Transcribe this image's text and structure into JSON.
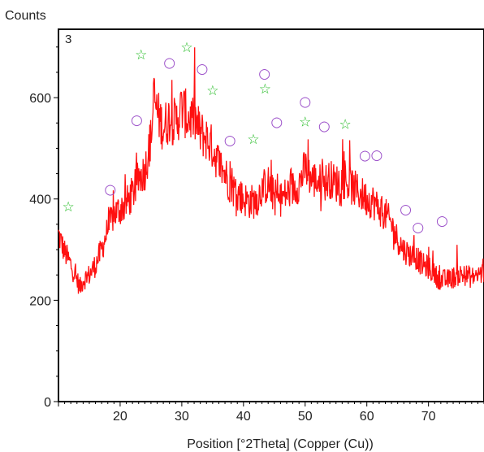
{
  "chart_data": {
    "type": "line",
    "title": "",
    "panel_label": "3",
    "ylabel": "Counts",
    "xlabel": "Position [°2Theta] (Copper (Cu))",
    "xlim": [
      10,
      79
    ],
    "ylim": [
      0,
      735
    ],
    "xticks": [
      20,
      30,
      40,
      50,
      60,
      70
    ],
    "yticks": [
      0,
      200,
      400,
      600
    ],
    "grid": false,
    "colors": {
      "trace": "#ff1010",
      "trace_dark": "#b00000",
      "star": "#22bb22",
      "circle": "#9b4fc9",
      "frame": "#000000"
    },
    "series": [
      {
        "x": [
          10,
          11,
          12,
          13,
          13.5,
          14,
          15,
          16,
          17,
          18,
          19,
          20,
          21,
          22,
          23,
          24,
          25,
          25.5,
          26,
          27,
          28,
          29,
          30,
          31,
          32,
          33,
          34,
          35,
          36,
          37,
          38,
          39,
          40,
          41,
          42,
          43,
          44,
          45,
          46,
          47,
          48,
          49,
          50,
          51,
          52,
          53,
          54,
          55,
          56,
          57,
          58,
          59,
          60,
          61,
          62,
          63,
          64,
          65,
          66,
          67,
          68,
          69,
          70,
          71,
          72,
          73,
          74,
          75,
          76,
          77,
          78,
          79
        ],
        "y": [
          330,
          295,
          270,
          240,
          225,
          240,
          250,
          270,
          300,
          340,
          370,
          380,
          390,
          410,
          440,
          455,
          520,
          600,
          570,
          540,
          560,
          550,
          580,
          560,
          560,
          530,
          520,
          500,
          470,
          450,
          425,
          410,
          400,
          395,
          395,
          420,
          430,
          405,
          400,
          410,
          420,
          430,
          460,
          440,
          435,
          430,
          440,
          430,
          440,
          430,
          420,
          410,
          400,
          395,
          380,
          370,
          350,
          320,
          300,
          290,
          285,
          270,
          265,
          250,
          240,
          240,
          245,
          250,
          250,
          245,
          250,
          255
        ]
      }
    ],
    "markers": {
      "star_label": "☆",
      "circle_label": "○",
      "stars": [
        {
          "x": 11.6,
          "y": 385
        },
        {
          "x": 23.4,
          "y": 685
        },
        {
          "x": 30.8,
          "y": 700
        },
        {
          "x": 35.0,
          "y": 615
        },
        {
          "x": 41.6,
          "y": 518
        },
        {
          "x": 43.5,
          "y": 618
        },
        {
          "x": 50.0,
          "y": 553
        },
        {
          "x": 56.5,
          "y": 548
        }
      ],
      "circles": [
        {
          "x": 18.4,
          "y": 420
        },
        {
          "x": 22.7,
          "y": 557
        },
        {
          "x": 28.0,
          "y": 670
        },
        {
          "x": 33.3,
          "y": 658
        },
        {
          "x": 37.8,
          "y": 517
        },
        {
          "x": 43.4,
          "y": 648
        },
        {
          "x": 45.4,
          "y": 553
        },
        {
          "x": 50.0,
          "y": 593
        },
        {
          "x": 53.1,
          "y": 545
        },
        {
          "x": 59.7,
          "y": 487
        },
        {
          "x": 61.6,
          "y": 488
        },
        {
          "x": 66.3,
          "y": 380
        },
        {
          "x": 68.3,
          "y": 345
        },
        {
          "x": 72.2,
          "y": 358
        }
      ]
    }
  }
}
